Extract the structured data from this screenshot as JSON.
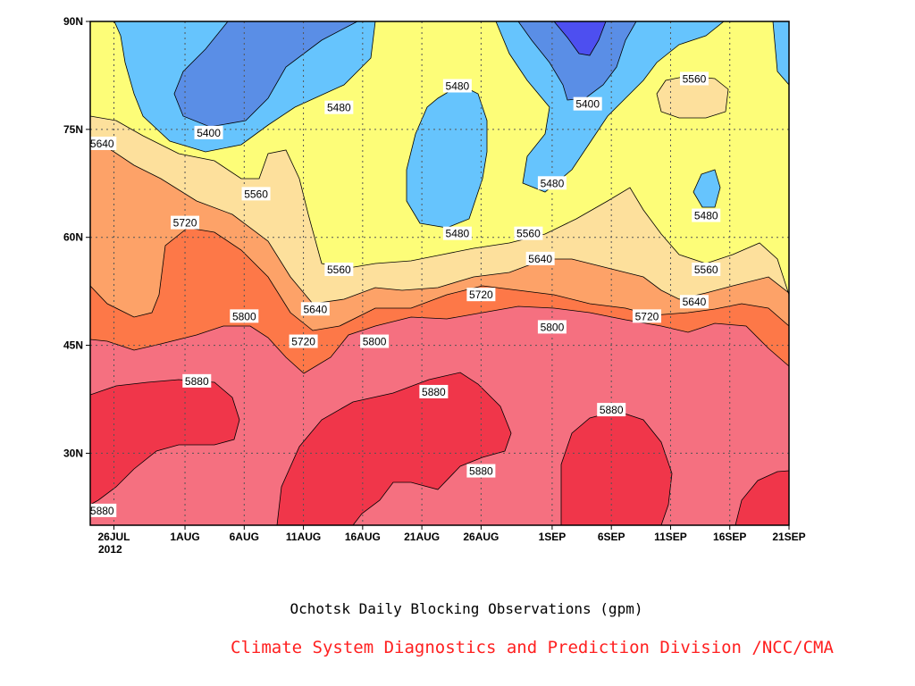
{
  "chart_data": {
    "type": "heatmap",
    "title": "Ochotsk Daily Blocking Observations (gpm)",
    "credit": "Climate System Diagnostics and Prediction Division /NCC/CMA",
    "x_axis": {
      "kind": "date",
      "range": [
        "2012-07-24",
        "2012-09-21"
      ],
      "ticks": [
        "26JUL",
        "1AUG",
        "6AUG",
        "11AUG",
        "16AUG",
        "21AUG",
        "26AUG",
        "1SEP",
        "6SEP",
        "11SEP",
        "16SEP",
        "21SEP"
      ],
      "tick_dates": [
        "2012-07-26",
        "2012-08-01",
        "2012-08-06",
        "2012-08-11",
        "2012-08-16",
        "2012-08-21",
        "2012-08-26",
        "2012-09-01",
        "2012-09-06",
        "2012-09-11",
        "2012-09-16",
        "2012-09-21"
      ],
      "year_label": "2012"
    },
    "y_axis": {
      "range": [
        20,
        90
      ],
      "ticks": [
        "30N",
        "45N",
        "60N",
        "75N",
        "90N"
      ],
      "tick_values": [
        30,
        45,
        60,
        75,
        90
      ]
    },
    "grid": true,
    "contour_levels": [
      5400,
      5480,
      5560,
      5640,
      5720,
      5800,
      5880
    ],
    "fill_colors": {
      "below_5320": "#4d4ff0",
      "5320_5400": "#5a8ee6",
      "5400_5480": "#66c4fd",
      "5480_5560": "#fdfd78",
      "5560_5640": "#fde09c",
      "5640_5720": "#fda268",
      "5720_5800": "#fd7848",
      "5800_5880": "#f57080",
      "above_5880": "#f0364a"
    },
    "contour_labels": [
      {
        "text": "5640",
        "date": "2012-07-25",
        "lat": 73.0
      },
      {
        "text": "5400",
        "date": "2012-08-03",
        "lat": 74.5
      },
      {
        "text": "5480",
        "date": "2012-08-14",
        "lat": 78.0
      },
      {
        "text": "5560",
        "date": "2012-08-07",
        "lat": 66.0
      },
      {
        "text": "5720",
        "date": "2012-08-01",
        "lat": 62.0
      },
      {
        "text": "5800",
        "date": "2012-08-06",
        "lat": 49.0
      },
      {
        "text": "5880",
        "date": "2012-08-02",
        "lat": 40.0
      },
      {
        "text": "5880",
        "date": "2012-07-25",
        "lat": 22.0
      },
      {
        "text": "5560",
        "date": "2012-08-14",
        "lat": 55.5
      },
      {
        "text": "5640",
        "date": "2012-08-12",
        "lat": 50.0
      },
      {
        "text": "5720",
        "date": "2012-08-11",
        "lat": 45.5
      },
      {
        "text": "5800",
        "date": "2012-08-17",
        "lat": 45.5
      },
      {
        "text": "5880",
        "date": "2012-08-22",
        "lat": 38.5
      },
      {
        "text": "5480",
        "date": "2012-08-24",
        "lat": 81.0
      },
      {
        "text": "5480",
        "date": "2012-08-24",
        "lat": 60.5
      },
      {
        "text": "5720",
        "date": "2012-08-26",
        "lat": 52.0
      },
      {
        "text": "5880",
        "date": "2012-08-26",
        "lat": 27.5
      },
      {
        "text": "5560",
        "date": "2012-08-30",
        "lat": 60.5
      },
      {
        "text": "5640",
        "date": "2012-08-31",
        "lat": 57.0
      },
      {
        "text": "5800",
        "date": "2012-09-01",
        "lat": 47.5
      },
      {
        "text": "5480",
        "date": "2012-09-01",
        "lat": 67.5
      },
      {
        "text": "5400",
        "date": "2012-09-04",
        "lat": 78.5
      },
      {
        "text": "5880",
        "date": "2012-09-06",
        "lat": 36.0
      },
      {
        "text": "5560",
        "date": "2012-09-13",
        "lat": 82.0
      },
      {
        "text": "5480",
        "date": "2012-09-14",
        "lat": 63.0
      },
      {
        "text": "5560",
        "date": "2012-09-14",
        "lat": 55.5
      },
      {
        "text": "5640",
        "date": "2012-09-13",
        "lat": 51.0
      },
      {
        "text": "5720",
        "date": "2012-09-09",
        "lat": 49.0
      }
    ]
  }
}
